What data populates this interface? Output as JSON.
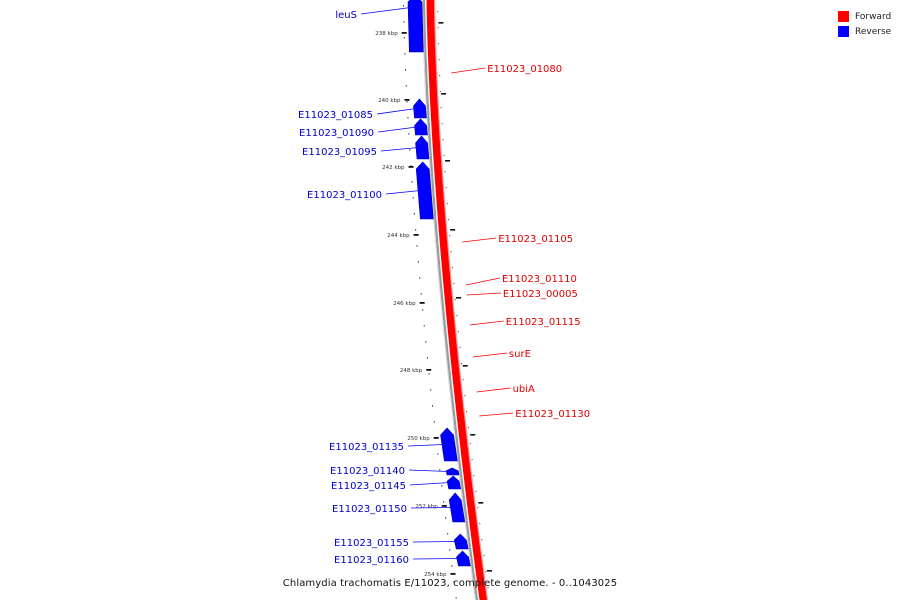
{
  "legend": {
    "forward": {
      "label": "Forward",
      "color": "#ff0000"
    },
    "reverse": {
      "label": "Reverse",
      "color": "#0000ff"
    }
  },
  "caption": "Chlamydia trachomatis E/11023, complete genome. - 0..1043025",
  "ticks": [
    {
      "label": "238 kbp"
    },
    {
      "label": "240 kbp"
    },
    {
      "label": "242 kbp"
    },
    {
      "label": "244 kbp"
    },
    {
      "label": "246 kbp"
    },
    {
      "label": "248 kbp"
    },
    {
      "label": "250 kbp"
    },
    {
      "label": "252 kbp"
    },
    {
      "label": "254 kbp"
    }
  ],
  "reverse_genes": [
    {
      "name": "leuS"
    },
    {
      "name": "E11023_01085"
    },
    {
      "name": "E11023_01090"
    },
    {
      "name": "E11023_01095"
    },
    {
      "name": "E11023_01100"
    },
    {
      "name": "E11023_01135"
    },
    {
      "name": "E11023_01140"
    },
    {
      "name": "E11023_01145"
    },
    {
      "name": "E11023_01150"
    },
    {
      "name": "E11023_01155"
    },
    {
      "name": "E11023_01160"
    }
  ],
  "forward_genes": [
    {
      "name": "E11023_01080"
    },
    {
      "name": "E11023_01105"
    },
    {
      "name": "E11023_01110"
    },
    {
      "name": "E11023_00005"
    },
    {
      "name": "E11023_01115"
    },
    {
      "name": "surE"
    },
    {
      "name": "ubiA"
    },
    {
      "name": "E11023_01130"
    }
  ]
}
